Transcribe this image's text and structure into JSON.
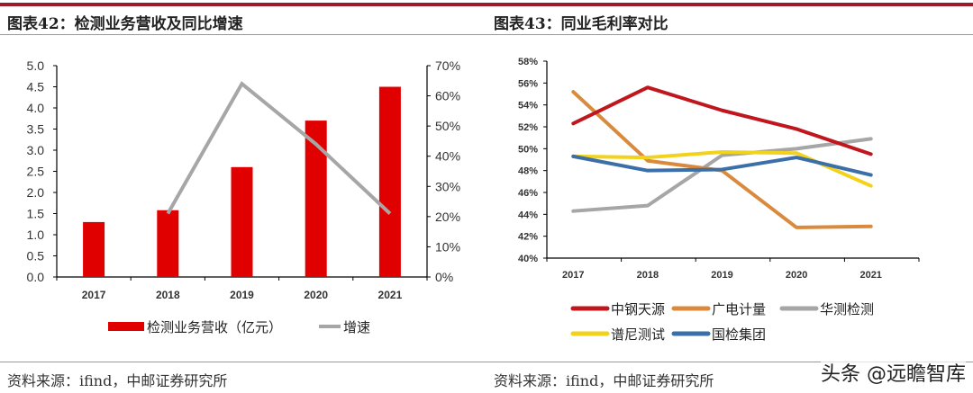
{
  "left": {
    "title": "图表42：检测业务营收及同比增速",
    "source": "资料来源：ifind，中邮证券研究所"
  },
  "right": {
    "title": "图表43：同业毛利率对比",
    "source": "资料来源：ifind，中邮证券研究所"
  },
  "watermark": "头条 @远瞻智库",
  "chart_data": [
    {
      "type": "bar+line",
      "categories": [
        "2017",
        "2018",
        "2019",
        "2020",
        "2021"
      ],
      "series": [
        {
          "name": "检测业务营收（亿元）",
          "type": "bar",
          "axis": "left",
          "color": "#e00000",
          "values": [
            1.3,
            1.58,
            2.6,
            3.7,
            4.5
          ]
        },
        {
          "name": "增速",
          "type": "line",
          "axis": "right",
          "color": "#a6a6a6",
          "values": [
            null,
            21,
            64,
            44,
            21
          ]
        }
      ],
      "ylim_left": [
        0,
        5
      ],
      "yticks_left": [
        "0.0",
        "0.5",
        "1.0",
        "1.5",
        "2.0",
        "2.5",
        "3.0",
        "3.5",
        "4.0",
        "4.5",
        "5.0"
      ],
      "ylim_right": [
        0,
        70
      ],
      "yticks_right": [
        "0%",
        "10%",
        "20%",
        "30%",
        "40%",
        "50%",
        "60%",
        "70%"
      ],
      "legend": "bottom",
      "grid": false
    },
    {
      "type": "line",
      "categories": [
        "2017",
        "2018",
        "2019",
        "2020",
        "2021"
      ],
      "series": [
        {
          "name": "中钢天源",
          "color": "#c0161e",
          "values": [
            52.3,
            55.6,
            53.5,
            51.8,
            49.5
          ]
        },
        {
          "name": "广电计量",
          "color": "#d98a3c",
          "values": [
            55.2,
            48.9,
            48.0,
            42.8,
            42.9
          ]
        },
        {
          "name": "华测检测",
          "color": "#a6a6a6",
          "values": [
            44.3,
            44.8,
            49.4,
            50.0,
            50.9
          ]
        },
        {
          "name": "谱尼测试",
          "color": "#f2d21b",
          "values": [
            49.3,
            49.2,
            49.7,
            49.6,
            46.6
          ]
        },
        {
          "name": "国检集团",
          "color": "#3a6fa8",
          "values": [
            49.3,
            48.0,
            48.1,
            49.2,
            47.6
          ]
        }
      ],
      "ylim": [
        40,
        58
      ],
      "yticks": [
        "40%",
        "42%",
        "44%",
        "46%",
        "48%",
        "50%",
        "52%",
        "54%",
        "56%",
        "58%"
      ],
      "legend": "bottom",
      "grid": false
    }
  ]
}
